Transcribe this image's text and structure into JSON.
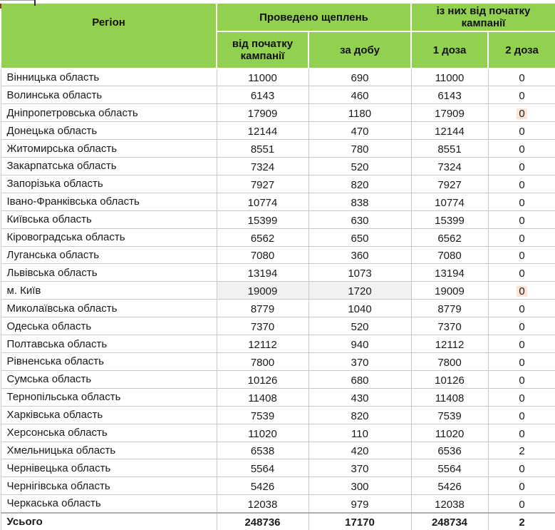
{
  "table": {
    "header": {
      "region_label": "Регіон",
      "group1_label": "Проведено щеплень",
      "group2_label": "із них від початку кампанії",
      "sub_total_campaign_label": "від початку кампанії",
      "sub_per_day_label": "за добу",
      "sub_dose1_label": "1 доза",
      "sub_dose2_label": "2 доза"
    },
    "rows": [
      {
        "region": "Вінницька область",
        "total_campaign": "11000",
        "per_day": "690",
        "dose1": "11000",
        "dose2": "0"
      },
      {
        "region": "Волинська область",
        "total_campaign": "6143",
        "per_day": "460",
        "dose1": "6143",
        "dose2": "0"
      },
      {
        "region": "Дніпропетровська область",
        "total_campaign": "17909",
        "per_day": "1180",
        "dose1": "17909",
        "dose2": "0",
        "dose2_highlight": true
      },
      {
        "region": "Донецька область",
        "total_campaign": "12144",
        "per_day": "470",
        "dose1": "12144",
        "dose2": "0"
      },
      {
        "region": "Житомирська область",
        "total_campaign": "8551",
        "per_day": "780",
        "dose1": "8551",
        "dose2": "0"
      },
      {
        "region": "Закарпатська область",
        "total_campaign": "7324",
        "per_day": "520",
        "dose1": "7324",
        "dose2": "0"
      },
      {
        "region": "Запорізька область",
        "total_campaign": "7927",
        "per_day": "820",
        "dose1": "7927",
        "dose2": "0"
      },
      {
        "region": "Івано-Франківська область",
        "total_campaign": "10774",
        "per_day": "838",
        "dose1": "10774",
        "dose2": "0"
      },
      {
        "region": "Київська область",
        "total_campaign": "15399",
        "per_day": "630",
        "dose1": "15399",
        "dose2": "0"
      },
      {
        "region": "Кіровоградська область",
        "total_campaign": "6562",
        "per_day": "650",
        "dose1": "6562",
        "dose2": "0"
      },
      {
        "region": "Луганська область",
        "total_campaign": "7080",
        "per_day": "360",
        "dose1": "7080",
        "dose2": "0"
      },
      {
        "region": "Львівська область",
        "total_campaign": "13194",
        "per_day": "1073",
        "dose1": "13194",
        "dose2": "0"
      },
      {
        "region": "м. Київ",
        "total_campaign": "19009",
        "per_day": "1720",
        "dose1": "19009",
        "dose2": "0",
        "grey_fill": true,
        "dose2_highlight": true
      },
      {
        "region": "Миколаївська область",
        "total_campaign": "8779",
        "per_day": "1040",
        "dose1": "8779",
        "dose2": "0"
      },
      {
        "region": "Одеська область",
        "total_campaign": "7370",
        "per_day": "520",
        "dose1": "7370",
        "dose2": "0"
      },
      {
        "region": "Полтавська область",
        "total_campaign": "12112",
        "per_day": "940",
        "dose1": "12112",
        "dose2": "0"
      },
      {
        "region": "Рівненська область",
        "total_campaign": "7800",
        "per_day": "370",
        "dose1": "7800",
        "dose2": "0"
      },
      {
        "region": "Сумська область",
        "total_campaign": "10126",
        "per_day": "680",
        "dose1": "10126",
        "dose2": "0"
      },
      {
        "region": "Тернопільська область",
        "total_campaign": "11408",
        "per_day": "430",
        "dose1": "11408",
        "dose2": "0"
      },
      {
        "region": "Харківська область",
        "total_campaign": "7539",
        "per_day": "820",
        "dose1": "7539",
        "dose2": "0"
      },
      {
        "region": "Херсонська область",
        "total_campaign": "11020",
        "per_day": "110",
        "dose1": "11020",
        "dose2": "0"
      },
      {
        "region": "Хмельницька область",
        "total_campaign": "6538",
        "per_day": "420",
        "dose1": "6536",
        "dose2": "2"
      },
      {
        "region": "Чернівецька область",
        "total_campaign": "5564",
        "per_day": "370",
        "dose1": "5564",
        "dose2": "0"
      },
      {
        "region": "Чернігівська область",
        "total_campaign": "5426",
        "per_day": "300",
        "dose1": "5426",
        "dose2": "0"
      },
      {
        "region": "Черкаська область",
        "total_campaign": "12038",
        "per_day": "979",
        "dose1": "12038",
        "dose2": "0"
      }
    ],
    "total_row": {
      "region": "Усього",
      "total_campaign": "248736",
      "per_day": "17170",
      "dose1": "248734",
      "dose2": "2"
    }
  },
  "colors": {
    "header_green": "#92d050",
    "grid_border": "#c9c9c9",
    "kyiv_grey_fill": "#f1f1f1",
    "dose2_highlight": "#fce4d6"
  }
}
